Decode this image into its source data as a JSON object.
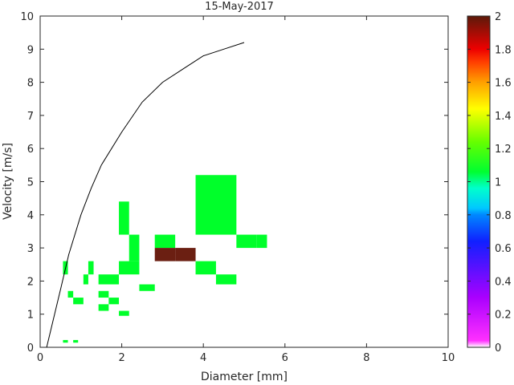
{
  "chart_data": {
    "type": "heatmap",
    "title": "15-May-2017",
    "xlabel": "Diameter [mm]",
    "ylabel": "Velocity [m/s]",
    "xlim": [
      0,
      10
    ],
    "ylim": [
      0,
      10
    ],
    "x_ticks": [
      "0",
      "2",
      "4",
      "6",
      "8",
      "10"
    ],
    "y_ticks": [
      "0",
      "1",
      "2",
      "3",
      "4",
      "5",
      "6",
      "7",
      "8",
      "9",
      "10"
    ],
    "grid": false,
    "colorbar": {
      "limits": [
        0,
        2
      ],
      "ticks": [
        "0",
        "0.2",
        "0.4",
        "0.6",
        "0.8",
        "1",
        "1.2",
        "1.4",
        "1.6",
        "1.8",
        "2"
      ],
      "placement": "right"
    },
    "cells": [
      {
        "x0": 0.56,
        "x1": 0.68,
        "y0": 0.14,
        "y1": 0.22,
        "value": 1
      },
      {
        "x0": 0.81,
        "x1": 0.93,
        "y0": 0.14,
        "y1": 0.22,
        "value": 1
      },
      {
        "x0": 1.93,
        "x1": 2.18,
        "y0": 0.95,
        "y1": 1.1,
        "value": 1
      },
      {
        "x0": 1.43,
        "x1": 1.68,
        "y0": 1.1,
        "y1": 1.3,
        "value": 1
      },
      {
        "x0": 0.81,
        "x1": 1.06,
        "y0": 1.3,
        "y1": 1.5,
        "value": 1
      },
      {
        "x0": 1.68,
        "x1": 1.93,
        "y0": 1.3,
        "y1": 1.5,
        "value": 1
      },
      {
        "x0": 0.68,
        "x1": 0.81,
        "y0": 1.5,
        "y1": 1.7,
        "value": 1
      },
      {
        "x0": 1.43,
        "x1": 1.68,
        "y0": 1.5,
        "y1": 1.7,
        "value": 1
      },
      {
        "x0": 2.43,
        "x1": 2.81,
        "y0": 1.7,
        "y1": 1.9,
        "value": 1
      },
      {
        "x0": 1.06,
        "x1": 1.18,
        "y0": 1.9,
        "y1": 2.2,
        "value": 1
      },
      {
        "x0": 1.43,
        "x1": 1.93,
        "y0": 1.9,
        "y1": 2.2,
        "value": 1
      },
      {
        "x0": 4.31,
        "x1": 4.81,
        "y0": 1.9,
        "y1": 2.2,
        "value": 1
      },
      {
        "x0": 1.18,
        "x1": 1.31,
        "y0": 2.2,
        "y1": 2.6,
        "value": 1
      },
      {
        "x0": 1.93,
        "x1": 2.43,
        "y0": 2.2,
        "y1": 2.6,
        "value": 1
      },
      {
        "x0": 3.81,
        "x1": 4.31,
        "y0": 2.2,
        "y1": 2.6,
        "value": 1
      },
      {
        "x0": 0.56,
        "x1": 0.68,
        "y0": 2.2,
        "y1": 2.6,
        "value": 1
      },
      {
        "x0": 2.18,
        "x1": 2.43,
        "y0": 2.6,
        "y1": 3.4,
        "value": 1
      },
      {
        "x0": 2.81,
        "x1": 3.31,
        "y0": 3.0,
        "y1": 3.4,
        "value": 1
      },
      {
        "x0": 5.31,
        "x1": 5.56,
        "y0": 3.0,
        "y1": 3.4,
        "value": 1
      },
      {
        "x0": 4.81,
        "x1": 5.31,
        "y0": 3.0,
        "y1": 3.4,
        "value": 1
      },
      {
        "x0": 2.81,
        "x1": 3.31,
        "y0": 2.6,
        "y1": 3.0,
        "value": 2
      },
      {
        "x0": 3.31,
        "x1": 3.81,
        "y0": 2.6,
        "y1": 3.0,
        "value": 2
      },
      {
        "x0": 1.93,
        "x1": 2.18,
        "y0": 3.4,
        "y1": 4.4,
        "value": 1
      },
      {
        "x0": 3.81,
        "x1": 4.81,
        "y0": 3.4,
        "y1": 5.2,
        "value": 1
      }
    ],
    "curve": {
      "x": [
        0.16,
        0.5,
        0.7,
        1.0,
        1.25,
        1.5,
        2.0,
        2.5,
        3.0,
        3.5,
        4.0,
        4.5,
        5.0
      ],
      "y": [
        0.0,
        1.75,
        2.8,
        4.0,
        4.8,
        5.5,
        6.5,
        7.4,
        8.0,
        8.4,
        8.8,
        9.0,
        9.2
      ]
    }
  }
}
